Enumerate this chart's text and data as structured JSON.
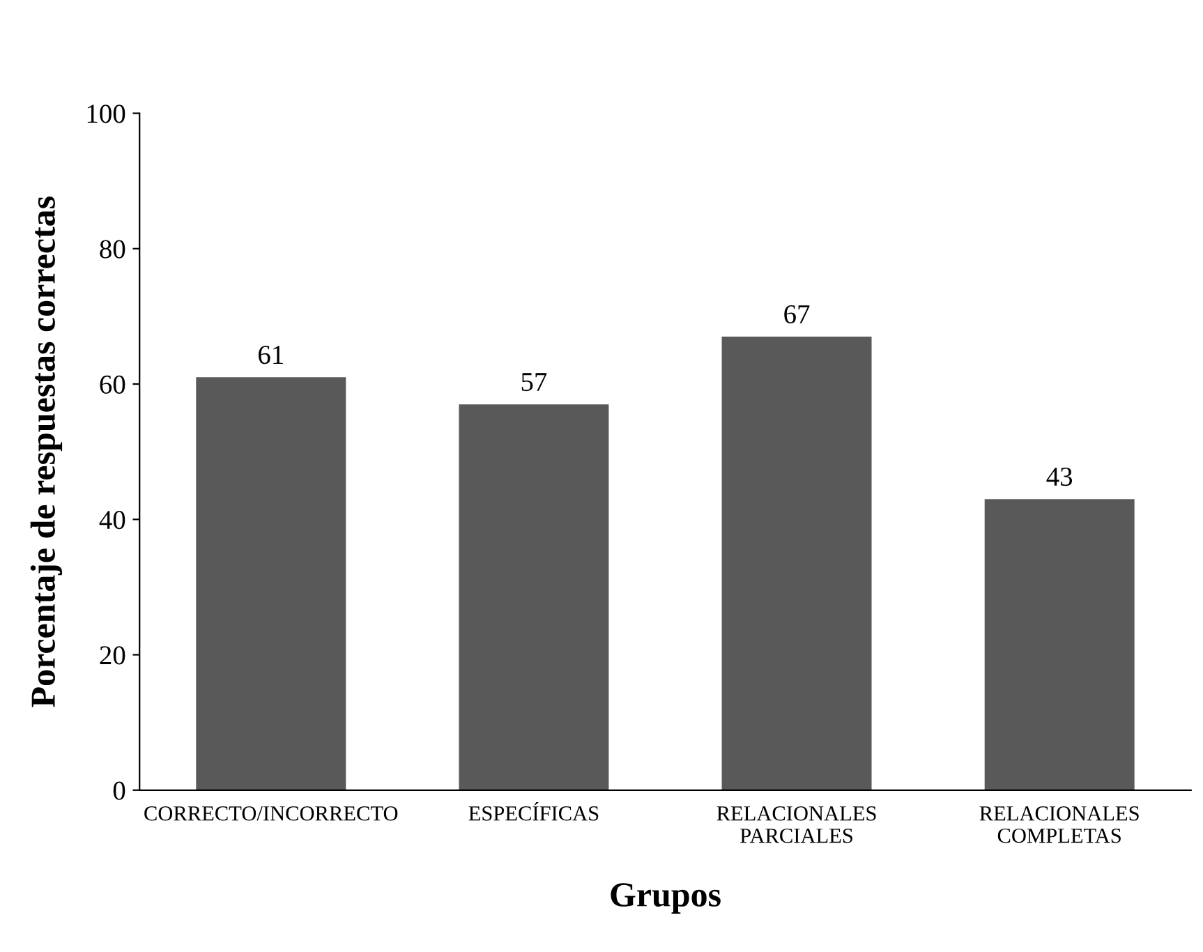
{
  "chart_data": {
    "type": "bar",
    "xlabel": "Grupos",
    "ylabel": "Porcentaje de respuestas correctas",
    "categories": [
      "CORRECTO/INCORRECTO",
      "ESPECÍFICAS",
      "RELACIONALES\nPARCIALES",
      "RELACIONALES\nCOMPLETAS"
    ],
    "values": [
      61,
      57,
      67,
      43
    ],
    "color": "#595959",
    "data_labels": true,
    "ylim": [
      0,
      100
    ],
    "yticks": [
      0,
      20,
      40,
      60,
      80,
      100
    ],
    "grid": false,
    "legend": false
  }
}
